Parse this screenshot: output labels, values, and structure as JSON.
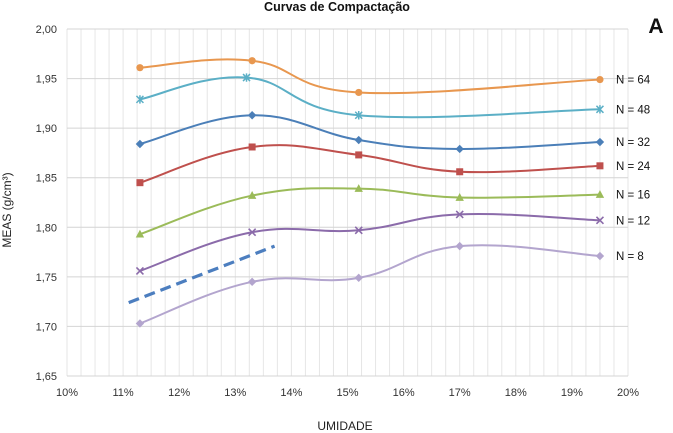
{
  "chart_data": {
    "type": "line",
    "title": "Curvas de Compactação",
    "panel_label": "A",
    "xlabel": "UMIDADE",
    "ylabel": "MEAS (g/cm³)",
    "xlim": [
      10,
      20
    ],
    "ylim": [
      1.65,
      2.0
    ],
    "xticks": [
      10,
      11,
      12,
      13,
      14,
      15,
      16,
      17,
      18,
      19,
      20
    ],
    "xtick_labels": [
      "10%",
      "11%",
      "12%",
      "13%",
      "14%",
      "15%",
      "16%",
      "17%",
      "18%",
      "19%",
      "20%"
    ],
    "yticks": [
      1.65,
      1.7,
      1.75,
      1.8,
      1.85,
      1.9,
      1.95,
      2.0
    ],
    "ytick_labels": [
      "1,65",
      "1,70",
      "1,75",
      "1,80",
      "1,85",
      "1,90",
      "1,95",
      "2,00"
    ],
    "grid": true,
    "series": [
      {
        "name": "N = 64",
        "color": "#E8974F",
        "marker": "circle",
        "x": [
          11.3,
          13.3,
          15.2,
          19.5
        ],
        "y": [
          1.961,
          1.968,
          1.936,
          1.949
        ]
      },
      {
        "name": "N = 48",
        "color": "#5BAFC6",
        "marker": "asterisk",
        "x": [
          11.3,
          13.2,
          15.2,
          19.5
        ],
        "y": [
          1.929,
          1.951,
          1.913,
          1.919
        ]
      },
      {
        "name": "N = 32",
        "color": "#4B7FB8",
        "marker": "diamond",
        "x": [
          11.3,
          13.3,
          15.2,
          17.0,
          19.5
        ],
        "y": [
          1.884,
          1.913,
          1.888,
          1.879,
          1.886
        ]
      },
      {
        "name": "N = 24",
        "color": "#BF504D",
        "marker": "square",
        "x": [
          11.3,
          13.3,
          15.2,
          17.0,
          19.5
        ],
        "y": [
          1.845,
          1.881,
          1.873,
          1.856,
          1.862
        ]
      },
      {
        "name": "N = 16",
        "color": "#9BBB59",
        "marker": "triangle",
        "x": [
          11.3,
          13.3,
          15.2,
          17.0,
          19.5
        ],
        "y": [
          1.793,
          1.832,
          1.839,
          1.83,
          1.833
        ]
      },
      {
        "name": "N = 12",
        "color": "#8B6BAA",
        "marker": "x",
        "x": [
          11.3,
          13.3,
          15.2,
          17.0,
          19.5
        ],
        "y": [
          1.756,
          1.795,
          1.797,
          1.813,
          1.807
        ]
      },
      {
        "name": "N = 8",
        "color": "#B3A5CE",
        "marker": "diamond",
        "x": [
          11.3,
          13.3,
          15.2,
          17.0,
          19.5
        ],
        "y": [
          1.703,
          1.745,
          1.749,
          1.781,
          1.771
        ]
      }
    ],
    "reference_line": {
      "style": "dashed",
      "color": "#4C7EBF",
      "x": [
        11.1,
        13.7
      ],
      "y": [
        1.724,
        1.781
      ]
    }
  }
}
